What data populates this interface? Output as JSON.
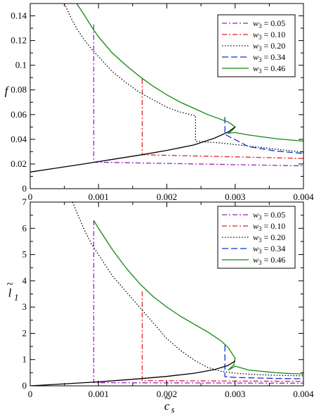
{
  "chart_data": [
    {
      "type": "line",
      "ylabel": "f",
      "xlabel": "",
      "xlim": [
        0,
        0.004
      ],
      "ylim": [
        0,
        0.15
      ],
      "xticks": [
        0,
        0.001,
        0.002,
        0.003,
        0.004
      ],
      "xtick_labels": [
        "0",
        "0.001",
        "0.002",
        "0.003",
        "0.004"
      ],
      "yticks": [
        0,
        0.02,
        0.04,
        0.06,
        0.08,
        0.1,
        0.12,
        0.14
      ],
      "ytick_labels": [
        "0",
        "0.02",
        "0.04",
        "0.06",
        "0.08",
        "0.1",
        "0.12",
        "0.14"
      ],
      "legend_position": "top-right",
      "series": [
        {
          "name": "w3 = 0.05",
          "label_var": "w",
          "label_sub": "3",
          "label_val": " = 0.05",
          "color": "#9b20c0",
          "dash": "7,3,2,3",
          "x": [
            0.00093,
            0.00093,
            0.004
          ],
          "y": [
            0.133,
            0.0215,
            0.0185
          ]
        },
        {
          "name": "w3 = 0.10",
          "label_var": "w",
          "label_sub": "3",
          "label_val": " = 0.10",
          "color": "#e02020",
          "dash": "7,3,2,3",
          "x": [
            0.00164,
            0.00164,
            0.004
          ],
          "y": [
            0.089,
            0.0275,
            0.0245
          ]
        },
        {
          "name": "w3 = 0.20",
          "label_var": "w",
          "label_sub": "3",
          "label_val": " = 0.20",
          "color": "#000000",
          "dash": "1.5,2.5",
          "x": [
            0.0005,
            0.0006,
            0.0007,
            0.0008,
            0.0009,
            0.001,
            0.0012,
            0.0014,
            0.0016,
            0.0018,
            0.002,
            0.0022,
            0.00242,
            0.00242,
            0.0028,
            0.0032,
            0.0036,
            0.004
          ],
          "y": [
            0.15,
            0.138,
            0.128,
            0.12,
            0.113,
            0.107,
            0.095,
            0.086,
            0.078,
            0.072,
            0.066,
            0.062,
            0.059,
            0.0385,
            0.037,
            0.0345,
            0.032,
            0.0295
          ]
        },
        {
          "name": "w3 = 0.34",
          "label_var": "w",
          "label_sub": "3",
          "label_val": " = 0.34",
          "color": "#1030d0",
          "dash": "9,4",
          "x": [
            0.00285,
            0.00285,
            0.0032,
            0.0036,
            0.004
          ],
          "y": [
            0.058,
            0.044,
            0.034,
            0.0305,
            0.0285
          ]
        },
        {
          "name": "w3 = 0.46",
          "label_var": "w",
          "label_sub": "3",
          "label_val": " = 0.46",
          "color": "#118811",
          "dash": "",
          "x": [
            0.00068,
            0.0008,
            0.0009,
            0.001,
            0.0012,
            0.0014,
            0.0016,
            0.0018,
            0.002,
            0.0022,
            0.0024,
            0.0026,
            0.0028,
            0.0029,
            0.003,
            0.00295,
            0.0029,
            0.003,
            0.0032,
            0.0034,
            0.0036,
            0.0038,
            0.004
          ],
          "y": [
            0.15,
            0.14,
            0.131,
            0.123,
            0.11,
            0.1,
            0.091,
            0.083,
            0.076,
            0.07,
            0.065,
            0.06,
            0.056,
            0.054,
            0.05,
            0.047,
            0.045,
            0.0455,
            0.0435,
            0.042,
            0.0405,
            0.0395,
            0.0385
          ]
        },
        {
          "name": "",
          "color": "#000000",
          "dash": "",
          "x": [
            0,
            0.0004,
            0.0008,
            0.0012,
            0.0016,
            0.002,
            0.0024,
            0.0027,
            0.0029,
            0.003
          ],
          "y": [
            0.0135,
            0.0168,
            0.0202,
            0.0237,
            0.0272,
            0.031,
            0.0355,
            0.041,
            0.046,
            0.05
          ]
        }
      ]
    },
    {
      "type": "line",
      "ylabel": "l~1",
      "ylabel_main": "l",
      "ylabel_sub": "1",
      "xlabel": "c~s",
      "xlabel_main": "c",
      "xlabel_sub": "s",
      "xlim": [
        0,
        0.004
      ],
      "ylim": [
        0,
        7
      ],
      "xticks": [
        0,
        0.001,
        0.002,
        0.003,
        0.004
      ],
      "xtick_labels": [
        "0",
        "0.001",
        "0.002",
        "0.003",
        "0.004"
      ],
      "yticks": [
        0,
        1,
        2,
        3,
        4,
        5,
        6,
        7
      ],
      "ytick_labels": [
        "0",
        "1",
        "2",
        "3",
        "4",
        "5",
        "6",
        "7"
      ],
      "legend_position": "top-right",
      "series": [
        {
          "name": "w3 = 0.05",
          "label_var": "w",
          "label_sub": "3",
          "label_val": " = 0.05",
          "color": "#9b20c0",
          "dash": "7,3,2,3",
          "x": [
            0.00093,
            0.00093,
            0.004
          ],
          "y": [
            6.3,
            0.12,
            0.1
          ]
        },
        {
          "name": "w3 = 0.10",
          "label_var": "w",
          "label_sub": "3",
          "label_val": " = 0.10",
          "color": "#e02020",
          "dash": "7,3,2,3",
          "x": [
            0.00164,
            0.00164,
            0.004
          ],
          "y": [
            3.6,
            0.2,
            0.17
          ]
        },
        {
          "name": "w3 = 0.20",
          "label_var": "w",
          "label_sub": "3",
          "label_val": " = 0.20",
          "color": "#000000",
          "dash": "1.5,2.5",
          "x": [
            0.00062,
            0.0007,
            0.0008,
            0.0009,
            0.001,
            0.0012,
            0.0014,
            0.0016,
            0.0018,
            0.002,
            0.0022,
            0.00242,
            0.0026,
            0.0028,
            0.003,
            0.0033,
            0.0036,
            0.004
          ],
          "y": [
            7.0,
            6.5,
            5.9,
            5.4,
            5.0,
            4.2,
            3.6,
            3.0,
            2.4,
            1.8,
            1.35,
            0.95,
            0.7,
            0.55,
            0.48,
            0.43,
            0.4,
            0.38
          ]
        },
        {
          "name": "w3 = 0.34",
          "label_var": "w",
          "label_sub": "3",
          "label_val": " = 0.34",
          "color": "#1030d0",
          "dash": "9,4",
          "x": [
            0.00285,
            0.00285,
            0.003,
            0.0033,
            0.0036,
            0.004
          ],
          "y": [
            1.55,
            0.35,
            0.32,
            0.3,
            0.28,
            0.27
          ]
        },
        {
          "name": "w3 = 0.46",
          "label_var": "w",
          "label_sub": "3",
          "label_val": " = 0.46",
          "color": "#118811",
          "dash": "",
          "x": [
            0.00093,
            0.001,
            0.0012,
            0.0014,
            0.0016,
            0.0018,
            0.002,
            0.0022,
            0.0024,
            0.0026,
            0.0028,
            0.0029,
            0.003,
            0.00298,
            0.0029,
            0.003,
            0.0032,
            0.0034,
            0.0036,
            0.0038,
            0.004
          ],
          "y": [
            6.3,
            6.0,
            5.2,
            4.5,
            3.9,
            3.4,
            3.0,
            2.65,
            2.35,
            2.05,
            1.7,
            1.45,
            1.05,
            0.8,
            0.6,
            0.75,
            0.6,
            0.55,
            0.5,
            0.47,
            0.45
          ]
        },
        {
          "name": "",
          "color": "#000000",
          "dash": "",
          "x": [
            0,
            0.0004,
            0.0008,
            0.0012,
            0.0016,
            0.002,
            0.0024,
            0.0027,
            0.0029,
            0.003
          ],
          "y": [
            0.0,
            0.06,
            0.12,
            0.19,
            0.27,
            0.36,
            0.48,
            0.62,
            0.78,
            0.95
          ]
        }
      ]
    }
  ]
}
